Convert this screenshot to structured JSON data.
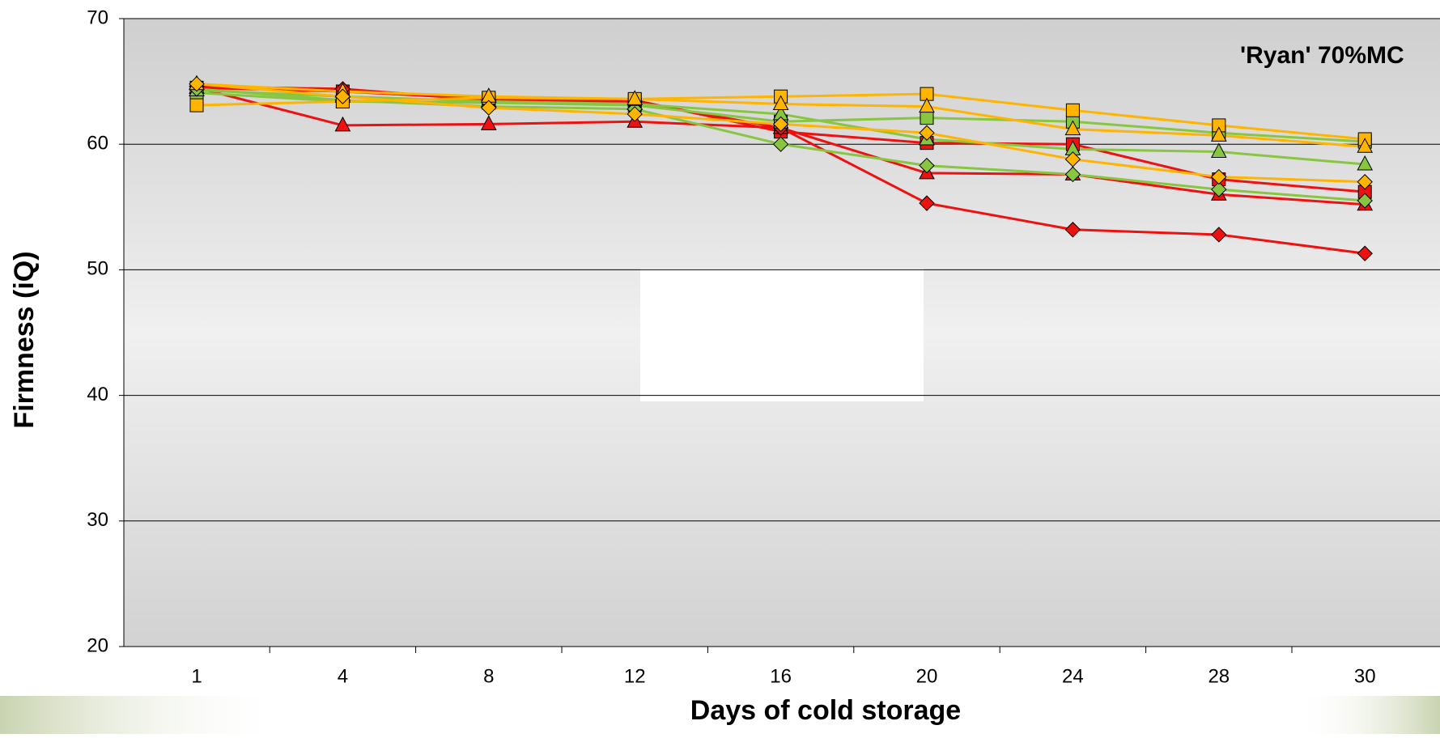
{
  "chart_data": {
    "type": "line",
    "annotation": "'Ryan' 70%MC",
    "x_label": "Days of cold storage",
    "y_label": "Firmness (iQ)",
    "categories": [
      "1",
      "4",
      "8",
      "12",
      "16",
      "20",
      "24",
      "28",
      "30"
    ],
    "ylim": [
      20,
      70
    ],
    "yticks": [
      20,
      30,
      40,
      50,
      60,
      70
    ],
    "grid": true,
    "series": [
      {
        "color": "#ee1111",
        "marker": "square",
        "values": [
          64.5,
          64.2,
          63.6,
          63.5,
          61.0,
          60.1,
          60.0,
          57.2,
          56.2
        ]
      },
      {
        "color": "#ee1111",
        "marker": "triangle",
        "values": [
          64.5,
          61.5,
          61.6,
          61.8,
          61.3,
          57.7,
          57.6,
          56.0,
          55.2
        ]
      },
      {
        "color": "#ee1111",
        "marker": "diamond",
        "values": [
          64.6,
          64.4,
          63.5,
          63.4,
          61.3,
          55.3,
          53.2,
          52.8,
          51.3
        ]
      },
      {
        "color": "#88c540",
        "marker": "square",
        "values": [
          64.1,
          63.4,
          63.3,
          63.1,
          61.8,
          62.1,
          61.8,
          60.9,
          60.2
        ]
      },
      {
        "color": "#88c540",
        "marker": "triangle",
        "values": [
          64.3,
          63.8,
          63.4,
          63.2,
          62.4,
          60.4,
          59.6,
          59.4,
          58.4
        ]
      },
      {
        "color": "#88c540",
        "marker": "diamond",
        "values": [
          64.4,
          63.5,
          63.0,
          62.8,
          60.0,
          58.3,
          57.6,
          56.4,
          55.5
        ]
      },
      {
        "color": "#ffb400",
        "marker": "square",
        "values": [
          63.1,
          63.4,
          63.7,
          63.6,
          63.8,
          64.0,
          62.7,
          61.5,
          60.4
        ]
      },
      {
        "color": "#ffb400",
        "marker": "triangle",
        "values": [
          64.8,
          64.2,
          63.8,
          63.6,
          63.2,
          63.0,
          61.2,
          60.7,
          59.8
        ]
      },
      {
        "color": "#ffb400",
        "marker": "diamond",
        "values": [
          64.8,
          63.8,
          62.9,
          62.4,
          61.6,
          60.9,
          58.8,
          57.4,
          57.0
        ]
      }
    ]
  }
}
